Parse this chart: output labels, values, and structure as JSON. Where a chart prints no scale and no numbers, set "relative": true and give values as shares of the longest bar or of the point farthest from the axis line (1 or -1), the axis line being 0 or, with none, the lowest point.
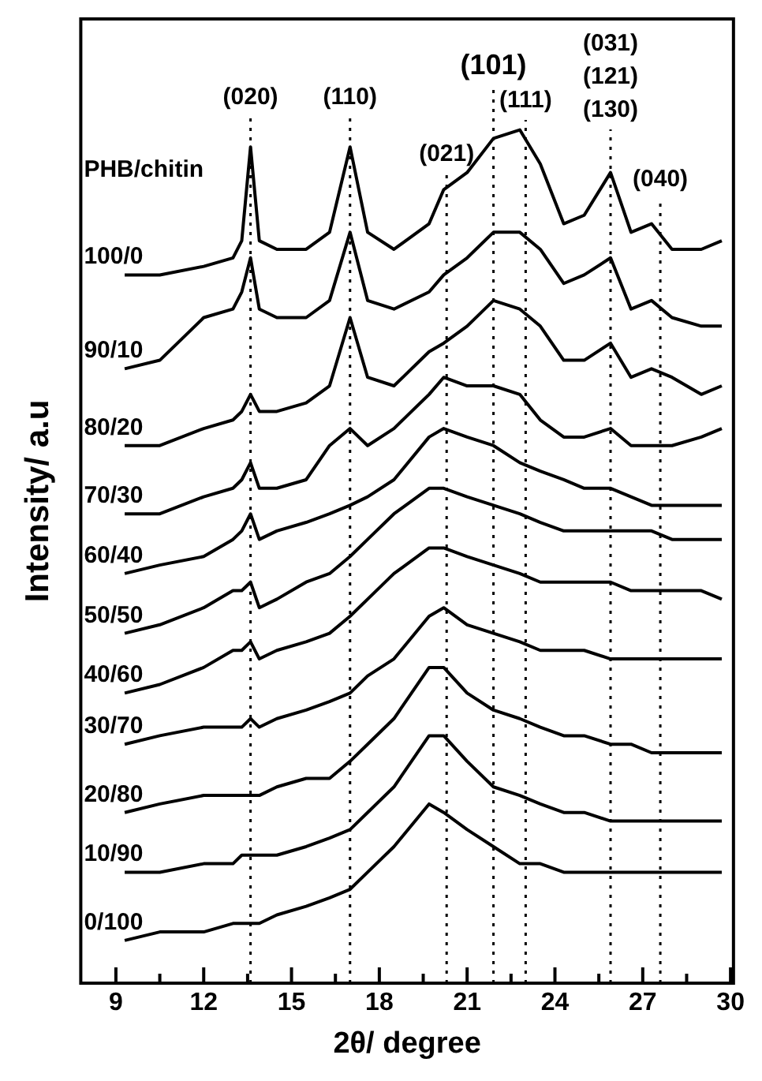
{
  "chart_data": {
    "type": "line",
    "relative": true,
    "xlabel": "2θ/ degree",
    "ylabel": "Intensity/ a.u",
    "legend_title": "PHB/chitin",
    "x": [
      9.3,
      10.5,
      12,
      13,
      13.3,
      13.6,
      13.9,
      14.5,
      15.5,
      16.3,
      17,
      17.6,
      18.5,
      19.7,
      20.2,
      21,
      21.9,
      22.8,
      23.5,
      24.3,
      25,
      25.9,
      26.6,
      27.3,
      28,
      29,
      29.7
    ],
    "xlim": [
      7.8,
      30.1
    ],
    "xticks": [
      9,
      {
        "value": 10.5,
        "label": null
      },
      12,
      {
        "value": 13.5,
        "label": null
      },
      15,
      {
        "value": 16.5,
        "label": null
      },
      18,
      {
        "value": 19.5,
        "label": null
      },
      21,
      {
        "value": 22.5,
        "label": null
      },
      24,
      {
        "value": 25.5,
        "label": null
      },
      27,
      {
        "value": 28.5,
        "label": null
      },
      30
    ],
    "grid": false,
    "series": [
      {
        "name": "100/0",
        "color": "#000000",
        "values": [
          0.83,
          0.83,
          0.84,
          0.85,
          0.87,
          0.98,
          0.87,
          0.86,
          0.86,
          0.88,
          0.98,
          0.88,
          0.86,
          0.89,
          0.93,
          0.95,
          0.99,
          1.0,
          0.96,
          0.89,
          0.9,
          0.95,
          0.88,
          0.89,
          0.86,
          0.86,
          0.87
        ]
      },
      {
        "name": "90/10",
        "color": "#000000",
        "values": [
          0.72,
          0.73,
          0.78,
          0.79,
          0.81,
          0.85,
          0.79,
          0.78,
          0.78,
          0.8,
          0.88,
          0.8,
          0.79,
          0.81,
          0.83,
          0.85,
          0.88,
          0.88,
          0.86,
          0.82,
          0.83,
          0.85,
          0.79,
          0.8,
          0.78,
          0.77,
          0.77
        ]
      },
      {
        "name": "80/20",
        "color": "#000000",
        "values": [
          0.63,
          0.63,
          0.65,
          0.66,
          0.67,
          0.69,
          0.67,
          0.67,
          0.68,
          0.7,
          0.78,
          0.71,
          0.7,
          0.74,
          0.75,
          0.77,
          0.8,
          0.79,
          0.77,
          0.73,
          0.73,
          0.75,
          0.71,
          0.72,
          0.71,
          0.69,
          0.7
        ]
      },
      {
        "name": "70/30",
        "color": "#000000",
        "values": [
          0.55,
          0.55,
          0.57,
          0.58,
          0.59,
          0.61,
          0.58,
          0.58,
          0.59,
          0.63,
          0.65,
          0.63,
          0.65,
          0.69,
          0.71,
          0.7,
          0.7,
          0.69,
          0.66,
          0.64,
          0.64,
          0.65,
          0.63,
          0.63,
          0.63,
          0.64,
          0.65
        ]
      },
      {
        "name": "60/40",
        "color": "#000000",
        "values": [
          0.48,
          0.49,
          0.5,
          0.52,
          0.53,
          0.55,
          0.52,
          0.53,
          0.54,
          0.55,
          0.56,
          0.57,
          0.59,
          0.64,
          0.65,
          0.64,
          0.63,
          0.61,
          0.6,
          0.59,
          0.58,
          0.58,
          0.57,
          0.56,
          0.56,
          0.56,
          0.56
        ]
      },
      {
        "name": "50/50",
        "color": "#000000",
        "values": [
          0.41,
          0.42,
          0.44,
          0.46,
          0.46,
          0.47,
          0.44,
          0.45,
          0.47,
          0.48,
          0.5,
          0.52,
          0.55,
          0.58,
          0.58,
          0.57,
          0.56,
          0.55,
          0.54,
          0.53,
          0.53,
          0.53,
          0.53,
          0.53,
          0.52,
          0.52,
          0.52
        ]
      },
      {
        "name": "40/60",
        "color": "#000000",
        "values": [
          0.34,
          0.35,
          0.37,
          0.39,
          0.39,
          0.4,
          0.38,
          0.39,
          0.4,
          0.41,
          0.43,
          0.45,
          0.48,
          0.51,
          0.51,
          0.5,
          0.49,
          0.48,
          0.47,
          0.47,
          0.47,
          0.47,
          0.46,
          0.46,
          0.46,
          0.46,
          0.45
        ]
      },
      {
        "name": "30/70",
        "color": "#000000",
        "values": [
          0.28,
          0.29,
          0.3,
          0.3,
          0.3,
          0.31,
          0.3,
          0.31,
          0.32,
          0.33,
          0.34,
          0.36,
          0.38,
          0.43,
          0.44,
          0.42,
          0.41,
          0.4,
          0.39,
          0.39,
          0.39,
          0.38,
          0.38,
          0.38,
          0.38,
          0.38,
          0.38
        ]
      },
      {
        "name": "20/80",
        "color": "#000000",
        "values": [
          0.2,
          0.21,
          0.22,
          0.22,
          0.22,
          0.22,
          0.22,
          0.23,
          0.24,
          0.24,
          0.26,
          0.28,
          0.31,
          0.37,
          0.37,
          0.34,
          0.32,
          0.31,
          0.3,
          0.29,
          0.29,
          0.28,
          0.28,
          0.27,
          0.27,
          0.27,
          0.27
        ]
      },
      {
        "name": "10/90",
        "color": "#000000",
        "values": [
          0.13,
          0.13,
          0.14,
          0.14,
          0.15,
          0.15,
          0.15,
          0.15,
          0.16,
          0.17,
          0.18,
          0.2,
          0.23,
          0.29,
          0.29,
          0.26,
          0.23,
          0.22,
          0.21,
          0.2,
          0.2,
          0.19,
          0.19,
          0.19,
          0.19,
          0.19,
          0.19
        ]
      },
      {
        "name": "0/100",
        "color": "#000000",
        "values": [
          0.05,
          0.06,
          0.06,
          0.07,
          0.07,
          0.07,
          0.07,
          0.08,
          0.09,
          0.1,
          0.11,
          0.13,
          0.16,
          0.21,
          0.2,
          0.18,
          0.16,
          0.14,
          0.14,
          0.13,
          0.13,
          0.13,
          0.13,
          0.13,
          0.13,
          0.13,
          0.13
        ]
      }
    ],
    "ref_lines": [
      {
        "axis": "x",
        "value": 13.6,
        "line_style": "dotted",
        "color": "#000000"
      },
      {
        "axis": "x",
        "value": 17.0,
        "line_style": "dotted",
        "color": "#000000"
      },
      {
        "axis": "x",
        "value": 20.3,
        "line_style": "dotted",
        "color": "#000000"
      },
      {
        "axis": "x",
        "value": 21.9,
        "line_style": "dotted",
        "color": "#000000"
      },
      {
        "axis": "x",
        "value": 23.0,
        "line_style": "dotted",
        "color": "#000000"
      },
      {
        "axis": "x",
        "value": 25.9,
        "line_style": "dotted",
        "color": "#000000"
      },
      {
        "axis": "x",
        "value": 27.6,
        "line_style": "dotted",
        "color": "#000000"
      }
    ],
    "annotations": [
      "(020)",
      "(110)",
      "(021)",
      "(101)",
      "(111)",
      "(031)\n(121)\n(130)",
      "(040)"
    ]
  }
}
